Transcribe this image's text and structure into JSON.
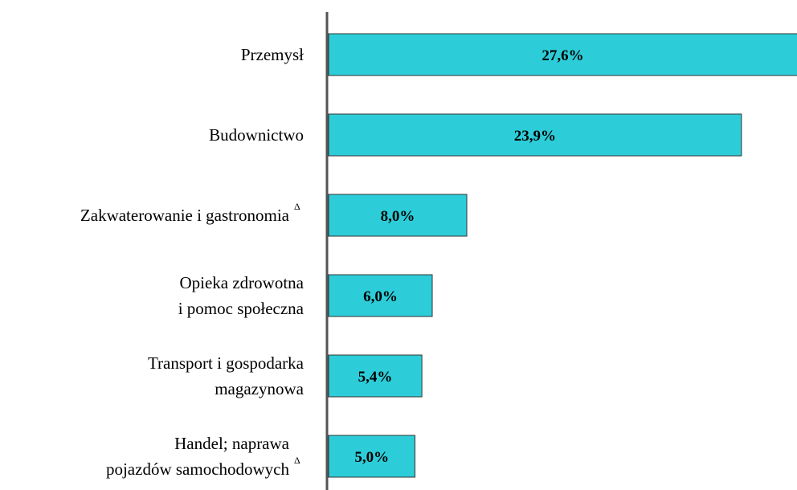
{
  "chart_data": {
    "type": "barh",
    "categories": [
      [
        "Przemysł"
      ],
      [
        "Budownictwo"
      ],
      [
        "Zakwaterowanie i gastronomia"
      ],
      [
        "Opieka zdrowotna",
        "i pomoc społeczna"
      ],
      [
        "Transport i gospodarka",
        "magazynowa"
      ],
      [
        "Handel; naprawa",
        "pojazdów samochodowych"
      ]
    ],
    "category_marks": [
      null,
      null,
      "Δ",
      null,
      null,
      "Δ"
    ],
    "values": [
      27.6,
      23.9,
      8.0,
      6.0,
      5.4,
      5.0
    ],
    "value_labels": [
      "27,6%",
      "23,9%",
      "8,0%",
      "6,0%",
      "5,4%",
      "5,0%"
    ],
    "color": "#2ccdd8"
  }
}
